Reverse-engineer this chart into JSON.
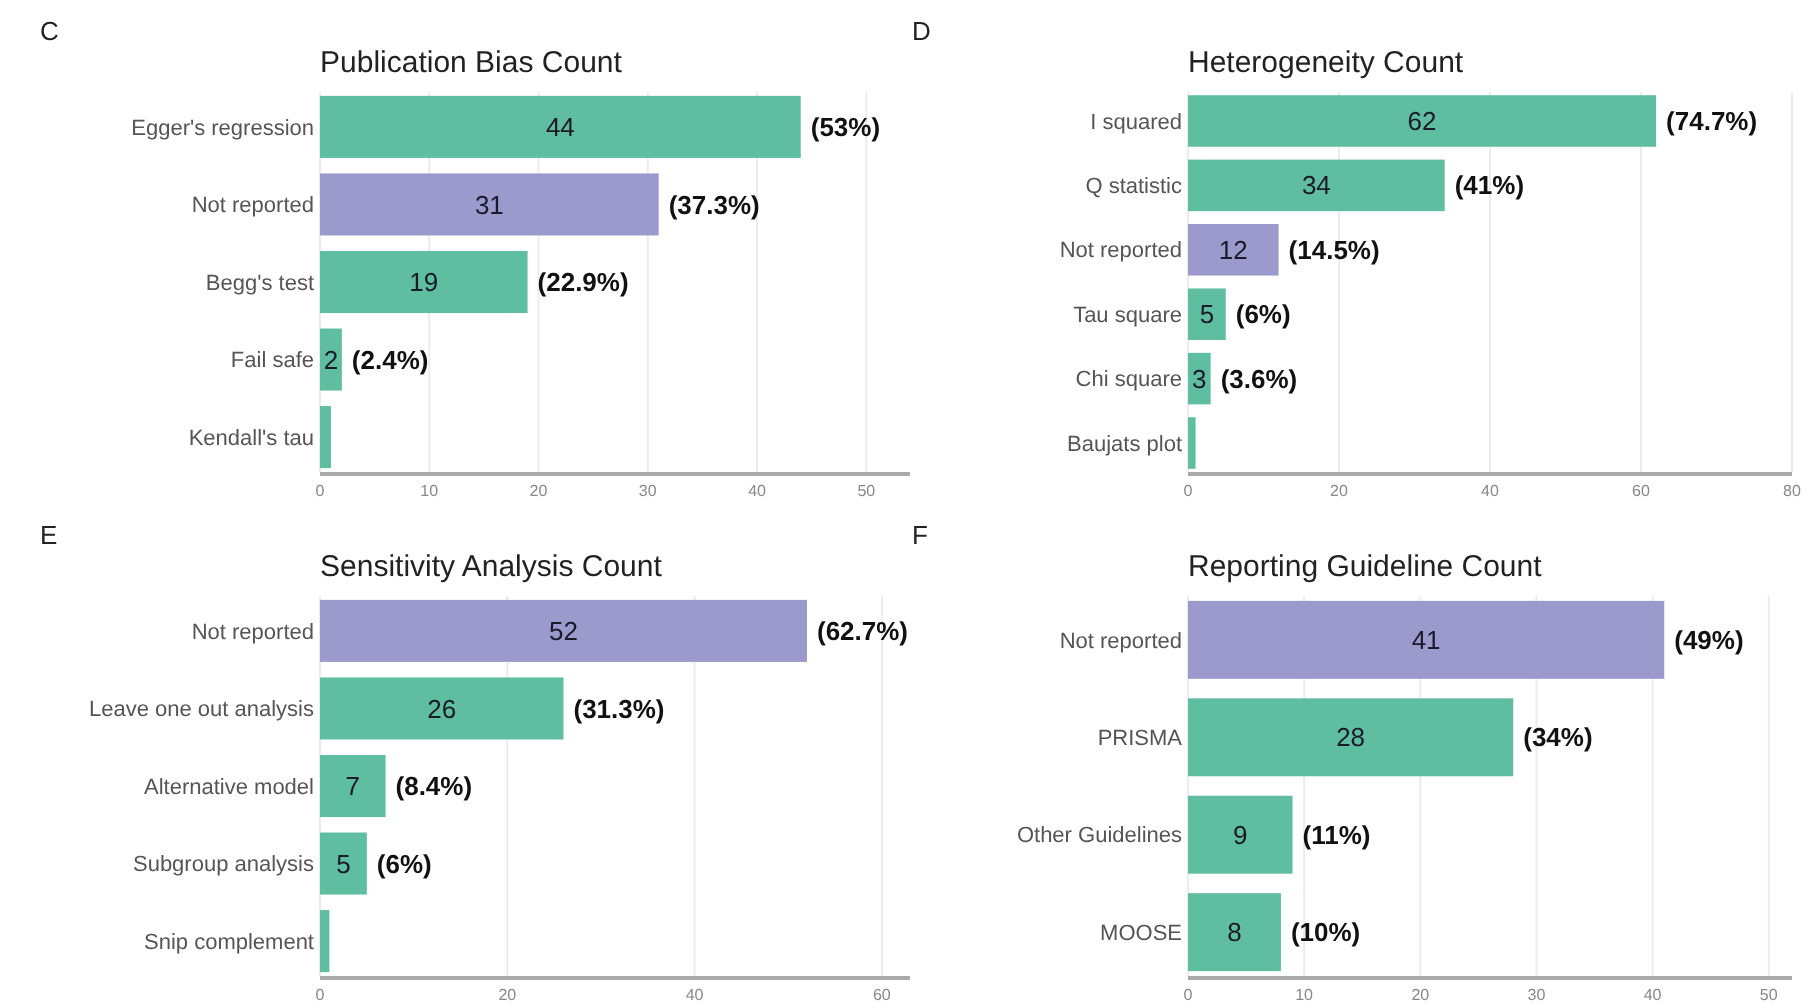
{
  "chart_data": [
    {
      "type": "bar",
      "orientation": "horizontal",
      "title": "Publication Bias Count",
      "annotations": [
        "C",
        {
          "text": "(53%)",
          "x": 44,
          "y": "Egger's regression"
        },
        {
          "text": "(37.3%)",
          "x": 31,
          "y": "Not reported"
        },
        {
          "text": "(22.9%)",
          "x": 19,
          "y": "Begg's test"
        },
        {
          "text": "(2.4%)",
          "x": 2,
          "y": "Fail safe"
        }
      ],
      "categories": [
        "Egger's regression",
        "Not reported",
        "Begg's test",
        "Fail safe",
        "Kendall's tau"
      ],
      "values": [
        44,
        31,
        19,
        2,
        1
      ],
      "value_labels": [
        "44",
        "31",
        "19",
        "2",
        null
      ],
      "colors": [
        "#5fbe9f",
        "#9c9acc",
        "#5fbe9f",
        "#5fbe9f",
        "#5fbe9f"
      ],
      "xlim": [
        0,
        54
      ],
      "xticks": [
        0,
        10,
        20,
        30,
        40,
        50
      ],
      "grid": "x"
    },
    {
      "type": "bar",
      "orientation": "horizontal",
      "title": "Heterogeneity Count",
      "annotations": [
        "D",
        {
          "text": "(74.7%)",
          "x": 62,
          "y": "I squared"
        },
        {
          "text": "(41%)",
          "x": 34,
          "y": "Q statistic"
        },
        {
          "text": "(14.5%)",
          "x": 12,
          "y": "Not reported"
        },
        {
          "text": "(6%)",
          "x": 5,
          "y": "Tau square"
        },
        {
          "text": "(3.6%)",
          "x": 3,
          "y": "Chi square"
        }
      ],
      "categories": [
        "I squared",
        "Q statistic",
        "Not reported",
        "Tau square",
        "Chi square",
        "Baujats plot"
      ],
      "values": [
        62,
        34,
        12,
        5,
        3,
        1
      ],
      "value_labels": [
        "62",
        "34",
        "12",
        "5",
        "3",
        null
      ],
      "colors": [
        "#5fbe9f",
        "#5fbe9f",
        "#9c9acc",
        "#5fbe9f",
        "#5fbe9f",
        "#5fbe9f"
      ],
      "xlim": [
        0,
        80
      ],
      "xticks": [
        0,
        20,
        40,
        60,
        80
      ],
      "grid": "x"
    },
    {
      "type": "bar",
      "orientation": "horizontal",
      "title": "Sensitivity Analysis Count",
      "annotations": [
        "E",
        {
          "text": "(62.7%)",
          "x": 52,
          "y": "Not reported"
        },
        {
          "text": "(31.3%)",
          "x": 26,
          "y": "Leave one out analysis"
        },
        {
          "text": "(8.4%)",
          "x": 7,
          "y": "Alternative model"
        },
        {
          "text": "(6%)",
          "x": 5,
          "y": "Subgroup analysis"
        }
      ],
      "categories": [
        "Not reported",
        "Leave one out analysis",
        "Alternative model",
        "Subgroup analysis",
        "Snip complement"
      ],
      "values": [
        52,
        26,
        7,
        5,
        1
      ],
      "value_labels": [
        "52",
        "26",
        "7",
        "5",
        null
      ],
      "colors": [
        "#9c9acc",
        "#5fbe9f",
        "#5fbe9f",
        "#5fbe9f",
        "#5fbe9f"
      ],
      "xlim": [
        0,
        63
      ],
      "xticks": [
        0,
        20,
        40,
        60
      ],
      "grid": "x"
    },
    {
      "type": "bar",
      "orientation": "horizontal",
      "title": "Reporting Guideline Count",
      "annotations": [
        "F",
        {
          "text": "(49%)",
          "x": 41,
          "y": "Not reported"
        },
        {
          "text": "(34%)",
          "x": 28,
          "y": "PRISMA"
        },
        {
          "text": "(11%)",
          "x": 9,
          "y": "Other Guidelines"
        },
        {
          "text": "(10%)",
          "x": 8,
          "y": "MOOSE"
        }
      ],
      "categories": [
        "Not reported",
        "PRISMA",
        "Other Guidelines",
        "MOOSE"
      ],
      "values": [
        41,
        28,
        9,
        8
      ],
      "value_labels": [
        "41",
        "28",
        "9",
        "8"
      ],
      "colors": [
        "#9c9acc",
        "#5fbe9f",
        "#5fbe9f",
        "#5fbe9f"
      ],
      "xlim": [
        0,
        52
      ],
      "xticks": [
        0,
        10,
        20,
        30,
        40,
        50
      ],
      "grid": "x"
    }
  ]
}
